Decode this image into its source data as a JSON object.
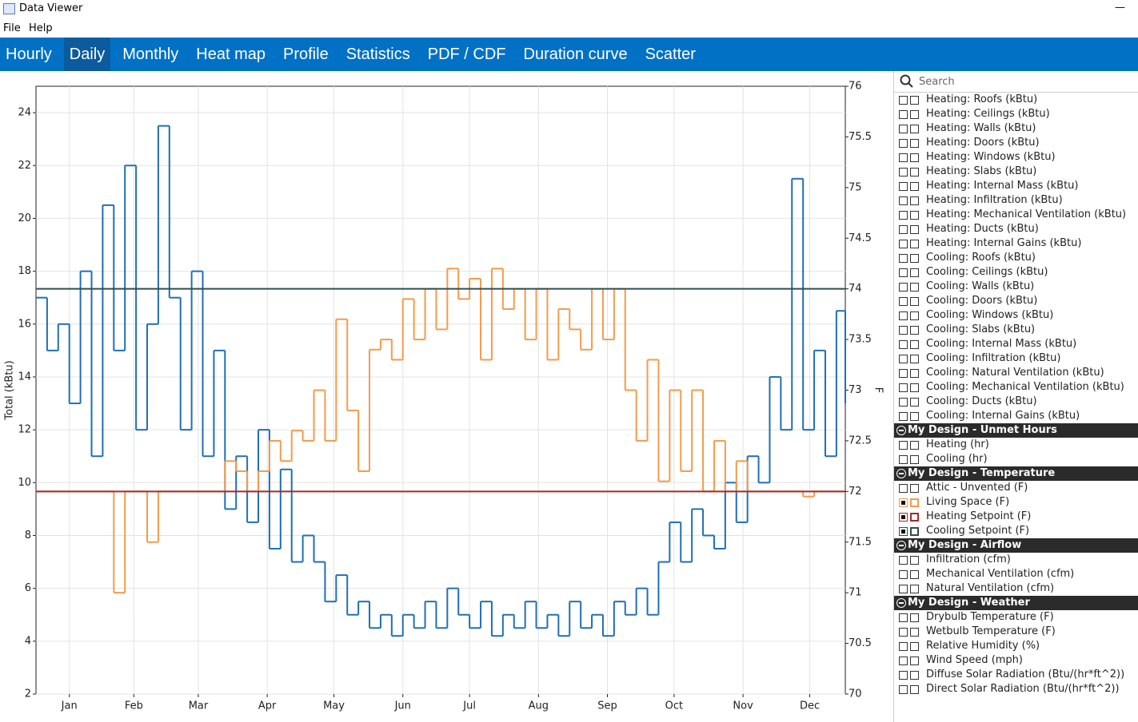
{
  "window_title": "Data Viewer",
  "menu": [
    "File",
    "Help"
  ],
  "tabs": [
    "Hourly",
    "Daily",
    "Monthly",
    "Heat map",
    "Profile",
    "Statistics",
    "PDF / CDF",
    "Duration curve",
    "Scatter"
  ],
  "selected_tab": 1,
  "chart_data": {
    "type": "step",
    "ylabel": "Total (kBtu)",
    "y2label": "F",
    "xlim": [
      1,
      365
    ],
    "xticks": [
      {
        "value": 16,
        "label": "Jan"
      },
      {
        "value": 45,
        "label": "Feb"
      },
      {
        "value": 74,
        "label": "Mar"
      },
      {
        "value": 105,
        "label": "Apr"
      },
      {
        "value": 135,
        "label": "May"
      },
      {
        "value": 166,
        "label": "Jun"
      },
      {
        "value": 196,
        "label": "Jul"
      },
      {
        "value": 227,
        "label": "Aug"
      },
      {
        "value": 258,
        "label": "Sep"
      },
      {
        "value": 288,
        "label": "Oct"
      },
      {
        "value": 319,
        "label": "Nov"
      },
      {
        "value": 349,
        "label": "Dec"
      }
    ],
    "ylim": [
      2,
      25
    ],
    "yticks": [
      2,
      4,
      6,
      8,
      10,
      12,
      14,
      16,
      18,
      20,
      22,
      24
    ],
    "y2lim": [
      70,
      76
    ],
    "y2ticks": [
      70,
      70.5,
      71,
      71.5,
      72,
      72.5,
      73,
      73.5,
      74,
      74.5,
      75,
      75.5,
      76
    ],
    "grid": true,
    "x": [
      1,
      6,
      11,
      16,
      21,
      26,
      31,
      36,
      41,
      46,
      51,
      56,
      61,
      66,
      71,
      76,
      81,
      86,
      91,
      96,
      101,
      106,
      111,
      116,
      121,
      126,
      131,
      136,
      141,
      146,
      151,
      156,
      161,
      166,
      171,
      176,
      181,
      186,
      191,
      196,
      201,
      206,
      211,
      216,
      221,
      226,
      231,
      236,
      241,
      246,
      251,
      256,
      261,
      266,
      271,
      276,
      281,
      286,
      291,
      296,
      301,
      306,
      311,
      316,
      321,
      326,
      331,
      336,
      341,
      346,
      351,
      356,
      361,
      365
    ],
    "series": [
      {
        "color": "#1f6fb4",
        "values": [
          17,
          15,
          16,
          13,
          18,
          11,
          20.5,
          15,
          22,
          12,
          16,
          23.5,
          17,
          12,
          18,
          11,
          15,
          9,
          11,
          8.5,
          12,
          7.5,
          10.5,
          7,
          8,
          7,
          5.5,
          6.5,
          5,
          5.5,
          4.5,
          5,
          4.2,
          5,
          4.5,
          5.5,
          4.5,
          6,
          5,
          4.5,
          5.5,
          4.2,
          5,
          4.5,
          5.5,
          4.5,
          5,
          4.2,
          5.5,
          4.5,
          5,
          4.2,
          5.5,
          5,
          6,
          5,
          7,
          8.5,
          7,
          9,
          8,
          7.5,
          10,
          8.5,
          11,
          10,
          14,
          12,
          21.5,
          12,
          15,
          11,
          16.5,
          13
        ]
      },
      {
        "color": "#f39c4a",
        "axis": "y2",
        "values": [
          72,
          72,
          72,
          72,
          72,
          72,
          72,
          71,
          72,
          72,
          71.5,
          72,
          72,
          72,
          72,
          72,
          72,
          72.3,
          72.2,
          72,
          72.2,
          72.5,
          72.3,
          72.6,
          72.5,
          73,
          72.5,
          73.7,
          72.8,
          72.2,
          73.4,
          73.5,
          73.3,
          73.9,
          73.5,
          74,
          73.6,
          74.2,
          73.9,
          74.1,
          73.3,
          74.2,
          73.8,
          74,
          73.5,
          74,
          73.3,
          73.8,
          73.6,
          73.4,
          74,
          73.5,
          74,
          73,
          72.5,
          73.3,
          72.1,
          73,
          72.2,
          73,
          72,
          72.5,
          72,
          72.3,
          72,
          72,
          72,
          72,
          72,
          71.95,
          72,
          72,
          72,
          72
        ]
      }
    ],
    "hlines": [
      {
        "value": 72,
        "axis": "y2",
        "color": "#a52a2a"
      },
      {
        "value": 74,
        "axis": "y2",
        "color": "#2f4f4f"
      }
    ]
  },
  "sidebar": {
    "search_placeholder": "Search",
    "items": [
      {
        "label": "Heating: Roofs (kBtu)"
      },
      {
        "label": "Heating: Ceilings (kBtu)"
      },
      {
        "label": "Heating: Walls (kBtu)"
      },
      {
        "label": "Heating: Doors (kBtu)"
      },
      {
        "label": "Heating: Windows (kBtu)"
      },
      {
        "label": "Heating: Slabs (kBtu)"
      },
      {
        "label": "Heating: Internal Mass (kBtu)"
      },
      {
        "label": "Heating: Infiltration (kBtu)"
      },
      {
        "label": "Heating: Mechanical Ventilation (kBtu)"
      },
      {
        "label": "Heating: Ducts (kBtu)"
      },
      {
        "label": "Heating: Internal Gains (kBtu)"
      },
      {
        "label": "Cooling: Roofs (kBtu)"
      },
      {
        "label": "Cooling: Ceilings (kBtu)"
      },
      {
        "label": "Cooling: Walls (kBtu)"
      },
      {
        "label": "Cooling: Doors (kBtu)"
      },
      {
        "label": "Cooling: Windows (kBtu)"
      },
      {
        "label": "Cooling: Slabs (kBtu)"
      },
      {
        "label": "Cooling: Internal Mass (kBtu)"
      },
      {
        "label": "Cooling: Infiltration (kBtu)"
      },
      {
        "label": "Cooling: Natural Ventilation (kBtu)"
      },
      {
        "label": "Cooling: Mechanical Ventilation (kBtu)"
      },
      {
        "label": "Cooling: Ducts (kBtu)"
      },
      {
        "label": "Cooling: Internal Gains (kBtu)"
      }
    ],
    "groups": [
      {
        "title": "My Design - Unmet Hours",
        "items": [
          {
            "label": "Heating (hr)"
          },
          {
            "label": "Cooling (hr)"
          }
        ]
      },
      {
        "title": "My Design - Temperature",
        "items": [
          {
            "label": "Attic - Unvented (F)"
          },
          {
            "label": "Living Space (F)",
            "color": "#f39c4a"
          },
          {
            "label": "Heating Setpoint (F)",
            "color": "#a52a2a"
          },
          {
            "label": "Cooling Setpoint (F)",
            "color": "#2f4f4f"
          }
        ]
      },
      {
        "title": "My Design - Airflow",
        "items": [
          {
            "label": "Infiltration (cfm)"
          },
          {
            "label": "Mechanical Ventilation (cfm)"
          },
          {
            "label": "Natural Ventilation (cfm)"
          }
        ]
      },
      {
        "title": "My Design - Weather",
        "items": [
          {
            "label": "Drybulb Temperature (F)"
          },
          {
            "label": "Wetbulb Temperature (F)"
          },
          {
            "label": "Relative Humidity (%)"
          },
          {
            "label": "Wind Speed (mph)"
          },
          {
            "label": "Diffuse Solar Radiation (Btu/(hr*ft^2))"
          },
          {
            "label": "Direct Solar Radiation (Btu/(hr*ft^2))"
          }
        ]
      }
    ]
  }
}
